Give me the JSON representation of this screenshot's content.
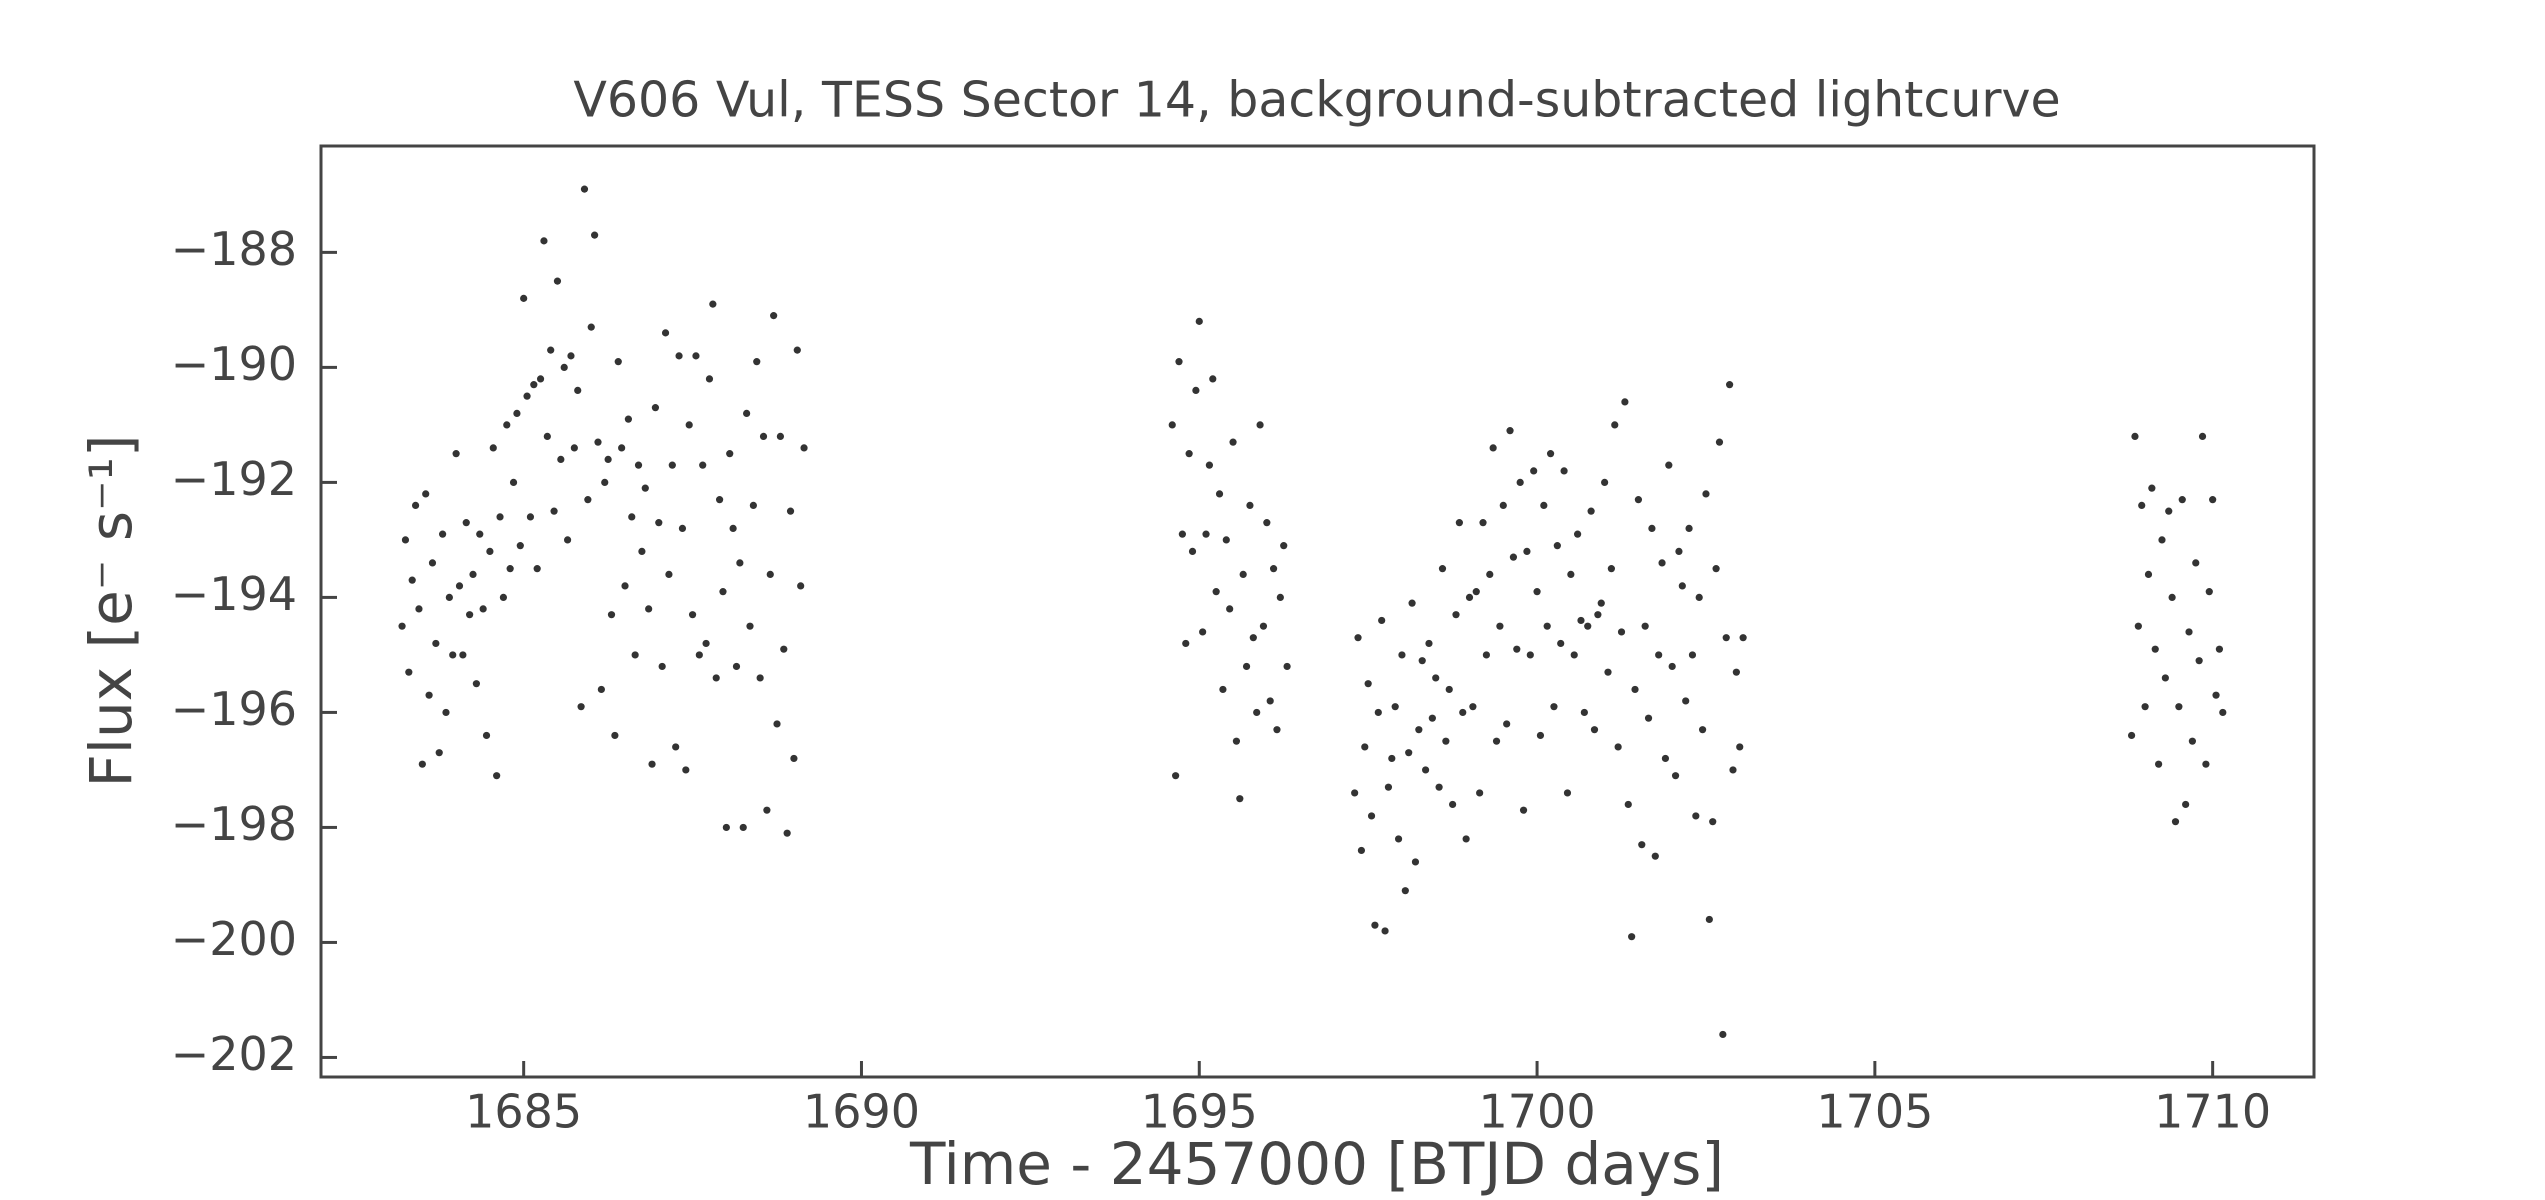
{
  "chart_data": {
    "type": "scatter",
    "title": "V606 Vul, TESS Sector 14, background-subtracted lightcurve",
    "xlabel": "Time - 2457000 [BTJD days]",
    "ylabel": "Flux [e⁻ s⁻¹]",
    "color": "#333333",
    "xlim": [
      1682.0,
      1711.5
    ],
    "ylim": [
      -202.34,
      -186.15
    ],
    "xticks": [
      1685,
      1690,
      1695,
      1700,
      1705,
      1710
    ],
    "yticks": [
      {
        "value": -202,
        "label": "−202"
      },
      {
        "value": -200,
        "label": "−200"
      },
      {
        "value": -198,
        "label": "−198"
      },
      {
        "value": -196,
        "label": "−196"
      },
      {
        "value": -194,
        "label": "−194"
      },
      {
        "value": -192,
        "label": "−192"
      },
      {
        "value": -190,
        "label": "−190"
      },
      {
        "value": -188,
        "label": "−188"
      }
    ],
    "x": [
      1683.2,
      1683.25,
      1683.3,
      1683.35,
      1683.4,
      1683.45,
      1683.5,
      1683.55,
      1683.6,
      1683.65,
      1683.7,
      1683.75,
      1683.8,
      1683.85,
      1683.9,
      1683.95,
      1684.0,
      1684.05,
      1684.1,
      1684.15,
      1684.2,
      1684.25,
      1684.3,
      1684.35,
      1684.4,
      1684.45,
      1684.5,
      1684.55,
      1684.6,
      1684.65,
      1684.7,
      1684.75,
      1684.8,
      1684.85,
      1684.9,
      1684.95,
      1685.0,
      1685.05,
      1685.1,
      1685.15,
      1685.2,
      1685.25,
      1685.3,
      1685.35,
      1685.4,
      1685.45,
      1685.5,
      1685.55,
      1685.6,
      1685.65,
      1685.7,
      1685.75,
      1685.8,
      1685.85,
      1685.9,
      1685.95,
      1686.0,
      1686.05,
      1686.1,
      1686.15,
      1686.2,
      1686.25,
      1686.3,
      1686.35,
      1686.4,
      1686.45,
      1686.5,
      1686.55,
      1686.6,
      1686.65,
      1686.7,
      1686.75,
      1686.8,
      1686.85,
      1686.9,
      1686.95,
      1687.0,
      1687.05,
      1687.1,
      1687.15,
      1687.2,
      1687.25,
      1687.3,
      1687.35,
      1687.4,
      1687.45,
      1687.5,
      1687.55,
      1687.6,
      1687.65,
      1687.7,
      1687.75,
      1687.8,
      1687.85,
      1687.9,
      1687.95,
      1688.0,
      1688.05,
      1688.1,
      1688.15,
      1688.2,
      1688.25,
      1688.3,
      1688.35,
      1688.4,
      1688.45,
      1688.5,
      1688.55,
      1688.6,
      1688.65,
      1688.7,
      1688.75,
      1688.8,
      1688.85,
      1688.9,
      1688.95,
      1689.0,
      1689.05,
      1689.1,
      1689.15,
      1694.6,
      1694.65,
      1694.7,
      1694.75,
      1694.8,
      1694.85,
      1694.9,
      1694.95,
      1695.0,
      1695.05,
      1695.1,
      1695.15,
      1695.2,
      1695.25,
      1695.3,
      1695.35,
      1695.4,
      1695.45,
      1695.5,
      1695.55,
      1695.6,
      1695.65,
      1695.7,
      1695.75,
      1695.8,
      1695.85,
      1695.9,
      1695.95,
      1696.0,
      1696.05,
      1696.1,
      1696.15,
      1696.2,
      1696.25,
      1696.3,
      1697.3,
      1697.35,
      1697.4,
      1697.45,
      1697.5,
      1697.55,
      1697.6,
      1697.65,
      1697.7,
      1697.75,
      1697.8,
      1697.85,
      1697.9,
      1697.95,
      1698.0,
      1698.05,
      1698.1,
      1698.15,
      1698.2,
      1698.25,
      1698.3,
      1698.35,
      1698.4,
      1698.45,
      1698.5,
      1698.55,
      1698.6,
      1698.65,
      1698.7,
      1698.75,
      1698.8,
      1698.85,
      1698.9,
      1698.95,
      1699.0,
      1699.05,
      1699.1,
      1699.15,
      1699.2,
      1699.25,
      1699.3,
      1699.35,
      1699.4,
      1699.45,
      1699.5,
      1699.55,
      1699.6,
      1699.65,
      1699.7,
      1699.75,
      1699.8,
      1699.85,
      1699.9,
      1699.95,
      1700.0,
      1700.05,
      1700.1,
      1700.15,
      1700.2,
      1700.25,
      1700.3,
      1700.35,
      1700.4,
      1700.45,
      1700.5,
      1700.55,
      1700.6,
      1700.65,
      1700.7,
      1700.75,
      1700.8,
      1700.85,
      1700.9,
      1700.95,
      1701.0,
      1701.05,
      1701.1,
      1701.15,
      1701.2,
      1701.25,
      1701.3,
      1701.35,
      1701.4,
      1701.45,
      1701.5,
      1701.55,
      1701.6,
      1701.65,
      1701.7,
      1701.75,
      1701.8,
      1701.85,
      1701.9,
      1701.95,
      1702.0,
      1702.05,
      1702.1,
      1702.15,
      1702.2,
      1702.25,
      1702.3,
      1702.35,
      1702.4,
      1702.45,
      1702.5,
      1702.55,
      1702.6,
      1702.65,
      1702.7,
      1702.75,
      1702.8,
      1702.85,
      1702.9,
      1702.95,
      1703.0,
      1703.05,
      1708.8,
      1708.85,
      1708.9,
      1708.95,
      1709.0,
      1709.05,
      1709.1,
      1709.15,
      1709.2,
      1709.25,
      1709.3,
      1709.35,
      1709.4,
      1709.45,
      1709.5,
      1709.55,
      1709.6,
      1709.65,
      1709.7,
      1709.75,
      1709.8,
      1709.85,
      1709.9,
      1709.95,
      1710.0,
      1710.05,
      1710.1,
      1710.15
    ],
    "values": [
      -194.5,
      -193.0,
      -195.3,
      -193.7,
      -192.4,
      -194.2,
      -196.9,
      -192.2,
      -195.7,
      -193.4,
      -194.8,
      -196.7,
      -192.9,
      -196.0,
      -194.0,
      -195.0,
      -191.5,
      -193.8,
      -195.0,
      -192.7,
      -194.3,
      -193.6,
      -195.5,
      -192.9,
      -194.2,
      -196.4,
      -193.2,
      -191.4,
      -197.1,
      -192.6,
      -194.0,
      -191.0,
      -193.5,
      -192.0,
      -190.8,
      -193.1,
      -188.8,
      -190.5,
      -192.6,
      -190.3,
      -193.5,
      -190.2,
      -187.8,
      -191.2,
      -189.7,
      -192.5,
      -188.5,
      -191.6,
      -190.0,
      -193.0,
      -189.8,
      -191.4,
      -190.4,
      -195.9,
      -186.9,
      -192.3,
      -189.3,
      -187.7,
      -191.3,
      -195.6,
      -192.0,
      -191.6,
      -194.3,
      -196.4,
      -189.9,
      -191.4,
      -193.8,
      -190.9,
      -192.6,
      -195.0,
      -191.7,
      -193.2,
      -192.1,
      -194.2,
      -196.9,
      -190.7,
      -192.7,
      -195.2,
      -189.4,
      -193.6,
      -191.7,
      -196.6,
      -189.8,
      -192.8,
      -197.0,
      -191.0,
      -194.3,
      -189.8,
      -195.0,
      -191.7,
      -194.8,
      -190.2,
      -188.9,
      -195.4,
      -192.3,
      -193.9,
      -198.0,
      -191.5,
      -192.8,
      -195.2,
      -193.4,
      -198.0,
      -190.8,
      -194.5,
      -192.4,
      -189.9,
      -195.4,
      -191.2,
      -197.7,
      -193.6,
      -189.1,
      -196.2,
      -191.2,
      -194.9,
      -198.1,
      -192.5,
      -196.8,
      -189.7,
      -193.8,
      -191.4,
      -191.0,
      -197.1,
      -189.9,
      -192.9,
      -194.8,
      -191.5,
      -193.2,
      -190.4,
      -189.2,
      -194.6,
      -192.9,
      -191.7,
      -190.2,
      -193.9,
      -192.2,
      -195.6,
      -193.0,
      -194.2,
      -191.3,
      -196.5,
      -197.5,
      -193.6,
      -195.2,
      -192.4,
      -194.7,
      -196.0,
      -191.0,
      -194.5,
      -192.7,
      -195.8,
      -193.5,
      -196.3,
      -194.0,
      -193.1,
      -195.2,
      -197.4,
      -194.7,
      -198.4,
      -196.6,
      -195.5,
      -197.8,
      -199.7,
      -196.0,
      -194.4,
      -199.8,
      -197.3,
      -196.8,
      -195.9,
      -198.2,
      -195.0,
      -199.1,
      -196.7,
      -194.1,
      -198.6,
      -196.3,
      -195.1,
      -197.0,
      -194.8,
      -196.1,
      -195.4,
      -197.3,
      -193.5,
      -196.5,
      -195.6,
      -197.6,
      -194.3,
      -192.7,
      -196.0,
      -198.2,
      -194.0,
      -195.9,
      -193.9,
      -197.4,
      -192.7,
      -195.0,
      -193.6,
      -191.4,
      -196.5,
      -194.5,
      -192.4,
      -196.2,
      -191.1,
      -193.3,
      -194.9,
      -192.0,
      -197.7,
      -193.2,
      -195.0,
      -191.8,
      -193.9,
      -196.4,
      -192.4,
      -194.5,
      -191.5,
      -195.9,
      -193.1,
      -194.8,
      -191.8,
      -197.4,
      -193.6,
      -195.0,
      -192.9,
      -194.4,
      -196.0,
      -194.5,
      -192.5,
      -196.3,
      -194.3,
      -194.1,
      -192.0,
      -195.3,
      -193.5,
      -191.0,
      -196.6,
      -194.6,
      -190.6,
      -197.6,
      -199.9,
      -195.6,
      -192.3,
      -198.3,
      -194.5,
      -196.1,
      -192.8,
      -198.5,
      -195.0,
      -193.4,
      -196.8,
      -191.7,
      -195.2,
      -197.1,
      -193.2,
      -193.8,
      -195.8,
      -192.8,
      -195.0,
      -197.8,
      -194.0,
      -196.3,
      -192.2,
      -199.6,
      -197.9,
      -193.5,
      -191.3,
      -201.6,
      -194.7,
      -190.3,
      -197.0,
      -195.3,
      -196.6,
      -194.7,
      -196.4,
      -191.2,
      -194.5,
      -192.4,
      -195.9,
      -193.6,
      -192.1,
      -194.9,
      -196.9,
      -193.0,
      -195.4,
      -192.5,
      -194.0,
      -197.9,
      -195.9,
      -192.3,
      -197.6,
      -194.6,
      -196.5,
      -193.4,
      -195.1,
      -191.2,
      -196.9,
      -193.9,
      -192.3,
      -195.7,
      -194.9,
      -196.0
    ]
  }
}
